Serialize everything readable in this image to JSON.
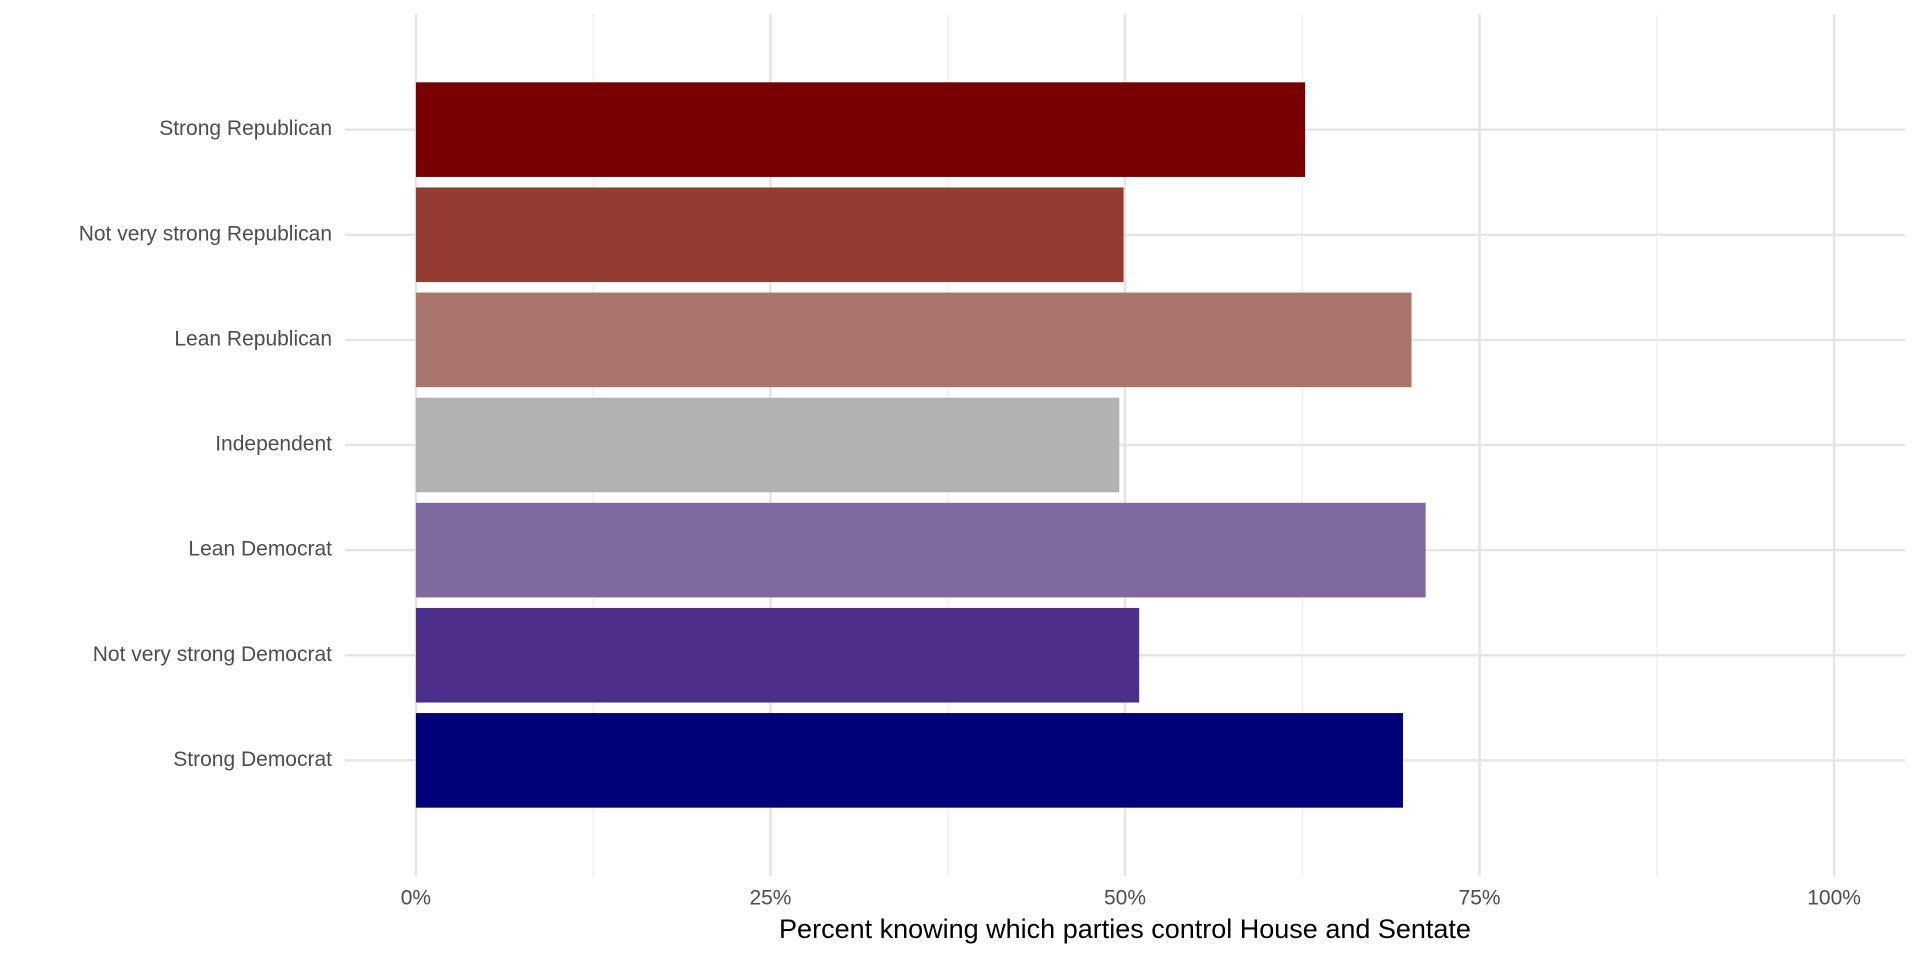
{
  "chart_data": {
    "type": "hbar",
    "x_label": "Percent knowing which parties control House and Sentate",
    "categories": [
      "Strong Republican",
      "Not very strong Republican",
      "Lean Republican",
      "Independent",
      "Lean Democrat",
      "Not very strong Democrat",
      "Strong Democrat"
    ],
    "values": [
      62.7,
      49.9,
      70.2,
      49.6,
      71.2,
      51.0,
      69.6
    ],
    "colors": [
      "#780000",
      "#943c32",
      "#a8746b",
      "#b2b2b2",
      "#7e6a9f",
      "#4b2f8a",
      "#000078"
    ],
    "xlim": [
      -5,
      105
    ],
    "xticks": [
      {
        "value": 0,
        "label": "0%"
      },
      {
        "value": 25,
        "label": "25%"
      },
      {
        "value": 50,
        "label": "50%"
      },
      {
        "value": 75,
        "label": "75%"
      },
      {
        "value": 100,
        "label": "100%"
      }
    ],
    "grid": true
  }
}
